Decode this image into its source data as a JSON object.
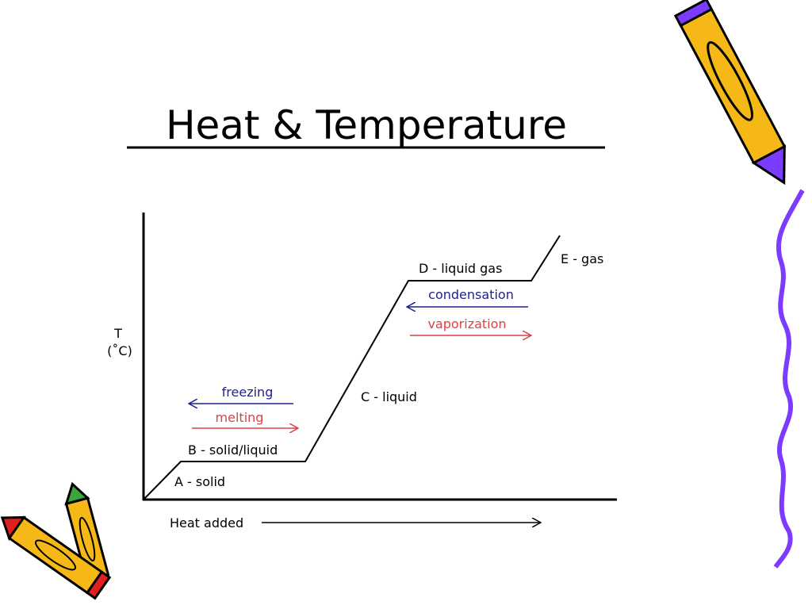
{
  "title": "Heat & Temperature",
  "diagram": {
    "y_axis_label": "T",
    "y_axis_unit": "(˚C)",
    "x_axis_label": "Heat added",
    "phases": [
      "A - solid",
      "B - solid/liquid",
      "C - liquid",
      "D - liquid gas",
      "E - gas"
    ],
    "processes": [
      "freezing",
      "melting",
      "condensation",
      "vaporization"
    ]
  }
}
